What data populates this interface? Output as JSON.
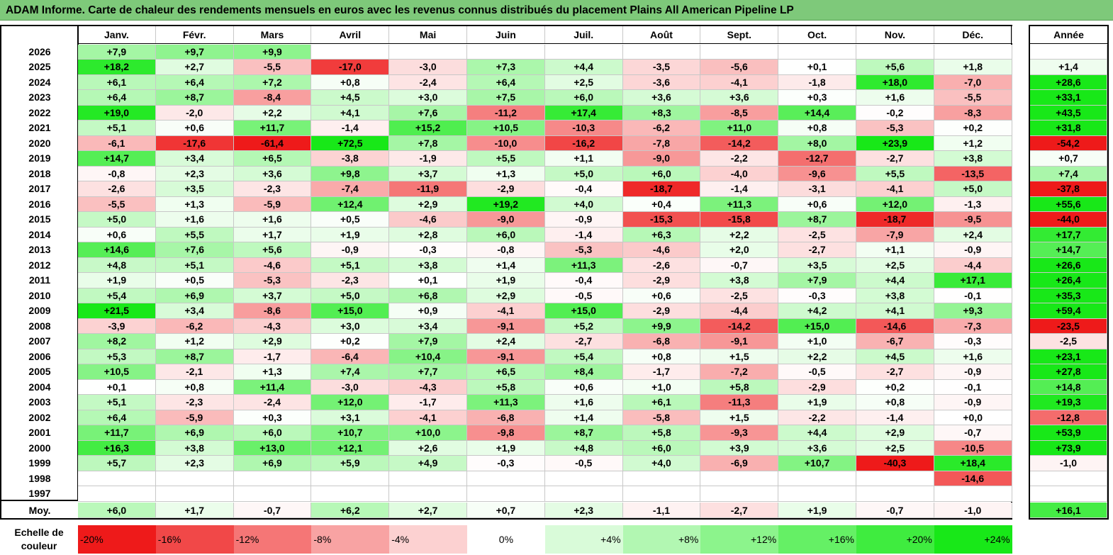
{
  "title": "ADAM Informe. Carte de chaleur des rendements mensuels en euros avec les revenus connus distribués du placement Plains All American Pipeline LP",
  "chart_data": {
    "type": "heatmap",
    "title": "ADAM Informe. Carte de chaleur des rendements mensuels en euros avec les revenus connus distribués du placement Plains All American Pipeline LP",
    "months": [
      "Janv.",
      "Févr.",
      "Mars",
      "Avril",
      "Mai",
      "Juin",
      "Juil.",
      "Août",
      "Sept.",
      "Oct.",
      "Nov.",
      "Déc."
    ],
    "year_header": "Année",
    "average_label": "Moy.",
    "rows": [
      {
        "year": "2026",
        "values": [
          7.9,
          9.7,
          9.9,
          null,
          null,
          null,
          null,
          null,
          null,
          null,
          null,
          null
        ],
        "annual": null
      },
      {
        "year": "2025",
        "values": [
          18.2,
          2.7,
          -5.5,
          -17.0,
          -3.0,
          7.3,
          4.4,
          -3.5,
          -5.6,
          0.1,
          5.6,
          1.8
        ],
        "annual": 1.4
      },
      {
        "year": "2024",
        "values": [
          6.1,
          6.4,
          7.2,
          0.8,
          -2.4,
          6.4,
          2.5,
          -3.6,
          -4.1,
          -1.8,
          18.0,
          -7.0
        ],
        "annual": 28.6
      },
      {
        "year": "2023",
        "values": [
          6.4,
          8.7,
          -8.4,
          4.5,
          3.0,
          7.5,
          6.0,
          3.6,
          3.6,
          0.3,
          1.6,
          -5.5
        ],
        "annual": 33.1
      },
      {
        "year": "2022",
        "values": [
          19.0,
          -2.0,
          2.2,
          4.1,
          7.6,
          -11.2,
          17.4,
          8.3,
          -8.5,
          14.4,
          -0.2,
          -8.3
        ],
        "annual": 43.5
      },
      {
        "year": "2021",
        "values": [
          5.1,
          0.6,
          11.7,
          -1.4,
          15.2,
          10.5,
          -10.3,
          -6.2,
          11.0,
          0.8,
          -5.3,
          0.2
        ],
        "annual": 31.8
      },
      {
        "year": "2020",
        "values": [
          -6.1,
          -17.6,
          -61.4,
          72.5,
          7.8,
          -10.0,
          -16.2,
          -7.8,
          -14.2,
          8.0,
          23.9,
          1.2
        ],
        "annual": -54.2
      },
      {
        "year": "2019",
        "values": [
          14.7,
          3.4,
          6.5,
          -3.8,
          -1.9,
          5.5,
          1.1,
          -9.0,
          -2.2,
          -12.7,
          -2.7,
          3.8
        ],
        "annual": 0.7
      },
      {
        "year": "2018",
        "values": [
          -0.8,
          2.3,
          3.6,
          9.8,
          3.7,
          1.3,
          5.0,
          6.0,
          -4.0,
          -9.6,
          5.5,
          -13.5
        ],
        "annual": 7.4
      },
      {
        "year": "2017",
        "values": [
          -2.6,
          3.5,
          -2.3,
          -7.4,
          -11.9,
          -2.9,
          -0.4,
          -18.7,
          -1.4,
          -3.1,
          -4.1,
          5.0
        ],
        "annual": -37.8
      },
      {
        "year": "2016",
        "values": [
          -5.5,
          1.3,
          -5.9,
          12.4,
          2.9,
          19.2,
          4.0,
          0.4,
          11.3,
          0.6,
          12.0,
          -1.3
        ],
        "annual": 55.6
      },
      {
        "year": "2015",
        "values": [
          5.0,
          1.6,
          1.6,
          0.5,
          -4.6,
          -9.0,
          -0.9,
          -15.3,
          -15.8,
          8.7,
          -18.7,
          -9.5
        ],
        "annual": -44.0
      },
      {
        "year": "2014",
        "values": [
          0.6,
          5.5,
          1.7,
          1.9,
          2.8,
          6.0,
          -1.4,
          6.3,
          2.2,
          -2.5,
          -7.9,
          2.4
        ],
        "annual": 17.7
      },
      {
        "year": "2013",
        "values": [
          14.6,
          7.6,
          5.6,
          -0.9,
          -0.3,
          -0.8,
          -5.3,
          -4.6,
          2.0,
          -2.7,
          1.1,
          -0.9
        ],
        "annual": 14.7
      },
      {
        "year": "2012",
        "values": [
          4.8,
          5.1,
          -4.6,
          5.1,
          3.8,
          1.4,
          11.3,
          -2.6,
          -0.7,
          3.5,
          2.5,
          -4.4
        ],
        "annual": 26.6
      },
      {
        "year": "2011",
        "values": [
          1.9,
          0.5,
          -5.3,
          -2.3,
          0.1,
          1.9,
          -0.4,
          -2.9,
          3.8,
          7.9,
          4.4,
          17.1
        ],
        "annual": 26.4
      },
      {
        "year": "2010",
        "values": [
          5.4,
          6.9,
          3.7,
          5.0,
          6.8,
          2.9,
          -0.5,
          0.6,
          -2.5,
          -0.3,
          3.8,
          -0.1
        ],
        "annual": 35.3
      },
      {
        "year": "2009",
        "values": [
          21.5,
          3.4,
          -8.6,
          15.0,
          0.9,
          -4.1,
          15.0,
          -2.9,
          -4.4,
          4.2,
          4.1,
          9.3
        ],
        "annual": 59.4
      },
      {
        "year": "2008",
        "values": [
          -3.9,
          -6.2,
          -4.3,
          3.0,
          3.4,
          -9.1,
          5.2,
          9.9,
          -14.2,
          15.0,
          -14.6,
          -7.3
        ],
        "annual": -23.5
      },
      {
        "year": "2007",
        "values": [
          8.2,
          1.2,
          2.9,
          0.2,
          7.9,
          2.4,
          -2.7,
          -6.8,
          -9.1,
          1.0,
          -6.7,
          -0.3
        ],
        "annual": -2.5
      },
      {
        "year": "2006",
        "values": [
          5.3,
          8.7,
          -1.7,
          -6.4,
          10.4,
          -9.1,
          5.4,
          0.8,
          1.5,
          2.2,
          4.5,
          1.6
        ],
        "annual": 23.1
      },
      {
        "year": "2005",
        "values": [
          10.5,
          -2.1,
          1.3,
          7.4,
          7.7,
          6.5,
          8.4,
          -1.7,
          -7.2,
          -0.5,
          -2.7,
          -0.9
        ],
        "annual": 27.8
      },
      {
        "year": "2004",
        "values": [
          0.1,
          0.8,
          11.4,
          -3.0,
          -4.3,
          5.8,
          0.6,
          1.0,
          5.8,
          -2.9,
          0.2,
          -0.1
        ],
        "annual": 14.8
      },
      {
        "year": "2003",
        "values": [
          5.1,
          -2.3,
          -2.4,
          12.0,
          -1.7,
          11.3,
          1.6,
          6.1,
          -11.3,
          1.9,
          0.8,
          -0.9
        ],
        "annual": 19.3
      },
      {
        "year": "2002",
        "values": [
          6.4,
          -5.9,
          0.3,
          3.1,
          -4.1,
          -6.8,
          1.4,
          -5.8,
          1.5,
          -2.2,
          -1.4,
          0.0
        ],
        "annual": -12.8
      },
      {
        "year": "2001",
        "values": [
          11.7,
          6.9,
          6.0,
          10.7,
          10.0,
          -9.8,
          8.7,
          5.8,
          -9.3,
          4.4,
          2.9,
          -0.7
        ],
        "annual": 53.9
      },
      {
        "year": "2000",
        "values": [
          16.3,
          3.8,
          13.0,
          12.1,
          2.6,
          1.9,
          4.8,
          6.0,
          3.9,
          3.6,
          2.5,
          -10.5
        ],
        "annual": 73.9
      },
      {
        "year": "1999",
        "values": [
          5.7,
          2.3,
          6.9,
          5.9,
          4.9,
          -0.3,
          -0.5,
          4.0,
          -6.9,
          10.7,
          -40.3,
          18.4
        ],
        "annual": -1.0
      },
      {
        "year": "1998",
        "values": [
          null,
          null,
          null,
          null,
          null,
          null,
          null,
          null,
          null,
          null,
          null,
          -14.6
        ],
        "annual": null
      },
      {
        "year": "1997",
        "values": [
          null,
          null,
          null,
          null,
          null,
          null,
          null,
          null,
          null,
          null,
          null,
          null
        ],
        "annual": null
      }
    ],
    "averages": {
      "values": [
        6.0,
        1.7,
        -0.7,
        6.2,
        2.7,
        0.7,
        2.3,
        -1.1,
        -2.7,
        1.9,
        -0.7,
        -1.0
      ],
      "annual": 16.1
    },
    "scale_label": "Echelle de couleur",
    "scale": [
      "-20%",
      "-16%",
      "-12%",
      "-8%",
      "-4%",
      "0%",
      "+4%",
      "+8%",
      "+12%",
      "+16%",
      "+20%",
      "+24%"
    ],
    "scale_values": [
      -20,
      -16,
      -12,
      -8,
      -4,
      0,
      4,
      8,
      12,
      16,
      20,
      24
    ]
  }
}
